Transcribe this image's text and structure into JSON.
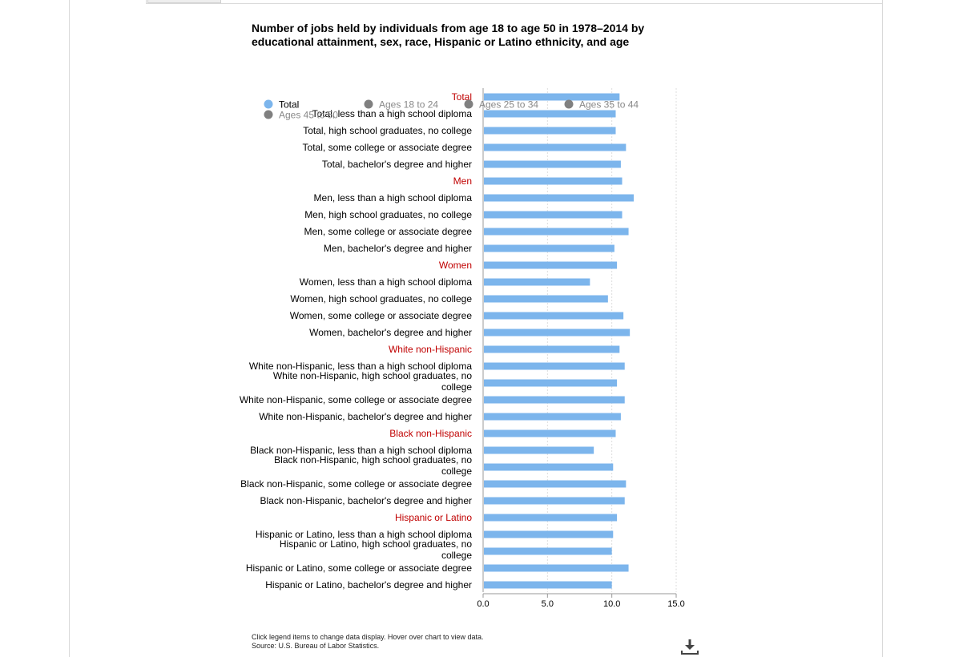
{
  "chart_data": {
    "type": "bar",
    "orientation": "horizontal",
    "title": "Number of jobs held by individuals from age 18 to age 50 in 1978–2014 by educational attainment, sex, race, Hispanic or Latino ethnicity, and age",
    "legend": [
      {
        "name": "Total",
        "color": "#7cb5ec",
        "active": true
      },
      {
        "name": "Ages 18 to 24",
        "color": "#808080",
        "active": false
      },
      {
        "name": "Ages 25 to 34",
        "color": "#808080",
        "active": false
      },
      {
        "name": "Ages 35 to 44",
        "color": "#808080",
        "active": false
      },
      {
        "name": "Ages 45 to 50",
        "color": "#808080",
        "active": false
      }
    ],
    "legend_position": "top",
    "categories": [
      {
        "label": "Total",
        "group": true,
        "value": 10.6
      },
      {
        "label": "Total, less than a high school diploma",
        "group": false,
        "value": 10.3
      },
      {
        "label": "Total, high school graduates, no college",
        "group": false,
        "value": 10.3
      },
      {
        "label": "Total, some college or associate degree",
        "group": false,
        "value": 11.1
      },
      {
        "label": "Total, bachelor's degree and higher",
        "group": false,
        "value": 10.7
      },
      {
        "label": "Men",
        "group": true,
        "value": 10.8
      },
      {
        "label": "Men, less than a high school diploma",
        "group": false,
        "value": 11.7
      },
      {
        "label": "Men, high school graduates, no college",
        "group": false,
        "value": 10.8
      },
      {
        "label": "Men, some college or associate degree",
        "group": false,
        "value": 11.3
      },
      {
        "label": "Men, bachelor's degree and higher",
        "group": false,
        "value": 10.2
      },
      {
        "label": "Women",
        "group": true,
        "value": 10.4
      },
      {
        "label": "Women, less than a high school diploma",
        "group": false,
        "value": 8.3
      },
      {
        "label": "Women, high school graduates, no college",
        "group": false,
        "value": 9.7
      },
      {
        "label": "Women, some college or associate degree",
        "group": false,
        "value": 10.9
      },
      {
        "label": "Women, bachelor's degree and higher",
        "group": false,
        "value": 11.4
      },
      {
        "label": "White non-Hispanic",
        "group": true,
        "value": 10.6
      },
      {
        "label": "White non-Hispanic, less than a high school diploma",
        "group": false,
        "value": 11.0
      },
      {
        "label": "White non-Hispanic, high school graduates, no college",
        "group": false,
        "value": 10.4
      },
      {
        "label": "White non-Hispanic, some college or associate degree",
        "group": false,
        "value": 11.0
      },
      {
        "label": "White non-Hispanic, bachelor's degree and higher",
        "group": false,
        "value": 10.7
      },
      {
        "label": "Black non-Hispanic",
        "group": true,
        "value": 10.3
      },
      {
        "label": "Black non-Hispanic, less than a high school diploma",
        "group": false,
        "value": 8.6
      },
      {
        "label": "Black non-Hispanic, high school graduates, no college",
        "group": false,
        "value": 10.1
      },
      {
        "label": "Black non-Hispanic, some college or associate degree",
        "group": false,
        "value": 11.1
      },
      {
        "label": "Black non-Hispanic, bachelor's degree and higher",
        "group": false,
        "value": 11.0
      },
      {
        "label": "Hispanic or Latino",
        "group": true,
        "value": 10.4
      },
      {
        "label": "Hispanic or Latino, less than a high school diploma",
        "group": false,
        "value": 10.1
      },
      {
        "label": "Hispanic or Latino, high school graduates, no college",
        "group": false,
        "value": 10.0
      },
      {
        "label": "Hispanic or Latino, some college or associate degree",
        "group": false,
        "value": 11.3
      },
      {
        "label": "Hispanic or Latino, bachelor's degree and higher",
        "group": false,
        "value": 10.0
      }
    ],
    "series": [
      {
        "name": "Total",
        "color": "#7cb5ec"
      }
    ],
    "xlim": [
      0,
      15
    ],
    "xticks": [
      "0.0",
      "5.0",
      "10.0",
      "15.0"
    ],
    "grid": true,
    "bar_color": "#7cb5ec",
    "group_label_color": "#c00000"
  },
  "footer": {
    "instructions": "Click legend items to change data display. Hover over chart to view data.",
    "source": "Source: U.S. Bureau of Labor Statistics."
  },
  "icons": {
    "download": "download-icon"
  }
}
